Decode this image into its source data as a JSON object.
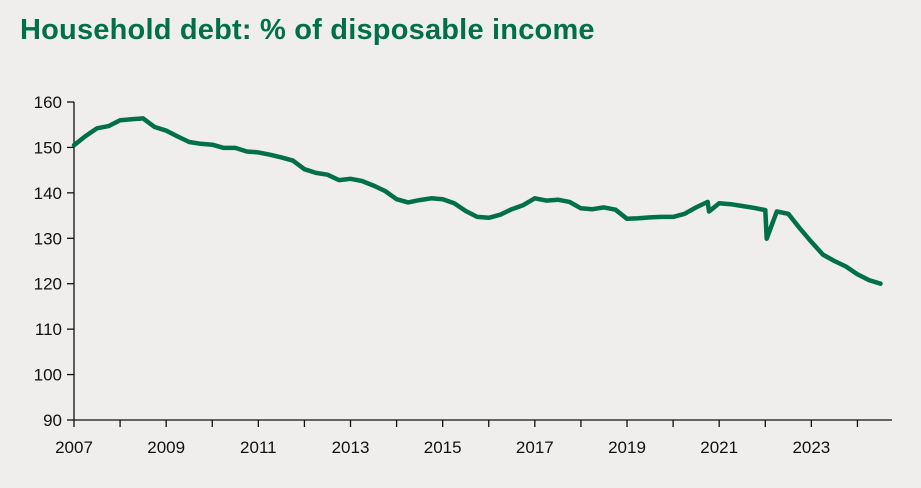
{
  "colors": {
    "accent": "#00704a",
    "background": "#efeeec",
    "axis": "#111111"
  },
  "chart_data": {
    "type": "line",
    "title": "Household debt: % of disposable income",
    "xlabel": "",
    "ylabel": "",
    "ylim": [
      90,
      160
    ],
    "xlim": [
      2007.0,
      2024.75
    ],
    "y_ticks": [
      90,
      100,
      110,
      120,
      130,
      140,
      150,
      160
    ],
    "x_ticks": [
      2007,
      2009,
      2011,
      2013,
      2015,
      2017,
      2019,
      2021,
      2023
    ],
    "grid": false,
    "series": [
      {
        "name": "Household debt",
        "color": "#00704a",
        "x": [
          2007.0,
          2007.25,
          2007.5,
          2007.75,
          2008.0,
          2008.25,
          2008.5,
          2008.75,
          2009.0,
          2009.25,
          2009.5,
          2009.75,
          2010.0,
          2010.25,
          2010.5,
          2010.75,
          2011.0,
          2011.25,
          2011.5,
          2011.75,
          2012.0,
          2012.25,
          2012.5,
          2012.75,
          2013.0,
          2013.25,
          2013.5,
          2013.75,
          2014.0,
          2014.25,
          2014.5,
          2014.75,
          2015.0,
          2015.25,
          2015.5,
          2015.75,
          2016.0,
          2016.25,
          2016.5,
          2016.75,
          2017.0,
          2017.25,
          2017.5,
          2017.75,
          2018.0,
          2018.25,
          2018.5,
          2018.75,
          2019.0,
          2019.25,
          2019.5,
          2019.75,
          2020.0,
          2020.25,
          2020.5,
          2020.75,
          2020.78,
          2021.0,
          2021.25,
          2021.5,
          2021.75,
          2022.0,
          2022.03,
          2022.25,
          2022.5,
          2022.75,
          2023.0,
          2023.25,
          2023.5,
          2023.75,
          2024.0,
          2024.25,
          2024.5
        ],
        "values": [
          150.5,
          152.5,
          154.2,
          154.7,
          156.0,
          156.2,
          156.4,
          154.5,
          153.7,
          152.4,
          151.2,
          150.8,
          150.6,
          149.9,
          149.9,
          149.1,
          148.9,
          148.4,
          147.8,
          147.1,
          145.2,
          144.4,
          144.0,
          142.8,
          143.1,
          142.6,
          141.6,
          140.4,
          138.6,
          137.9,
          138.4,
          138.8,
          138.6,
          137.7,
          136.0,
          134.7,
          134.5,
          135.2,
          136.4,
          137.3,
          138.8,
          138.3,
          138.5,
          138.0,
          136.6,
          136.4,
          136.8,
          136.3,
          134.3,
          134.4,
          134.6,
          134.7,
          134.7,
          135.4,
          136.8,
          138.0,
          135.9,
          137.7,
          137.5,
          137.1,
          136.7,
          136.2,
          129.9,
          135.9,
          135.4,
          132.2,
          129.2,
          126.4,
          125.0,
          123.8,
          122.1,
          120.8,
          120.0
        ]
      }
    ]
  }
}
